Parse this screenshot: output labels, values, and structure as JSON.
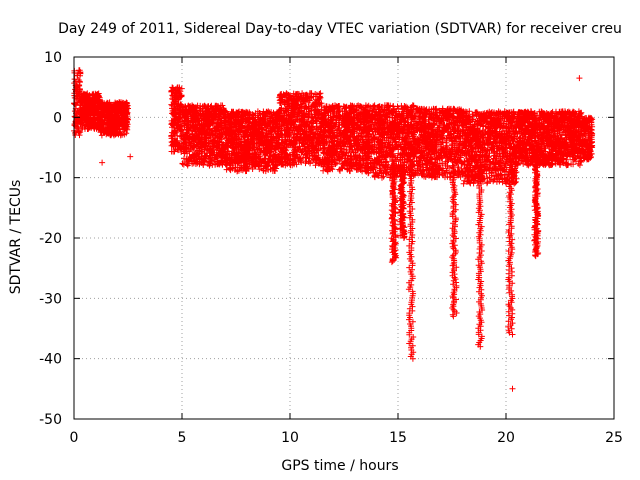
{
  "chart_data": {
    "type": "scatter",
    "title": "Day 249 of 2011, Sidereal Day-to-day VTEC variation (SDTVAR) for receiver creu",
    "xlabel": "GPS time / hours",
    "ylabel": "SDTVAR / TECUs",
    "xlim": [
      0,
      25
    ],
    "ylim": [
      -50,
      10
    ],
    "x_ticks": [
      0,
      5,
      10,
      15,
      20,
      25
    ],
    "y_ticks": [
      10,
      0,
      -10,
      -20,
      -30,
      -40,
      -50
    ],
    "x_tick_labels": [
      "0",
      "5",
      "10",
      "15",
      "20",
      "25"
    ],
    "y_tick_labels": [
      "10",
      "0",
      "-10",
      "-20",
      "-30",
      "-40",
      "-50"
    ],
    "grid": true,
    "marker": "+",
    "series": [
      {
        "name": "SDTVAR",
        "color": "#ff0000",
        "bands": [
          {
            "x": [
              0.0,
              0.3
            ],
            "ymin": -3,
            "ymax": 8
          },
          {
            "x": [
              0.3,
              1.2
            ],
            "ymin": -2,
            "ymax": 4
          },
          {
            "x": [
              1.2,
              2.5
            ],
            "ymin": -3,
            "ymax": 2.5
          },
          {
            "x": [
              4.5,
              5.0
            ],
            "ymin": -6,
            "ymax": 5
          },
          {
            "x": [
              5.0,
              7.0
            ],
            "ymin": -8,
            "ymax": 2
          },
          {
            "x": [
              7.0,
              9.5
            ],
            "ymin": -9,
            "ymax": 1
          },
          {
            "x": [
              9.5,
              11.5
            ],
            "ymin": -8,
            "ymax": 4
          },
          {
            "x": [
              11.5,
              13.5
            ],
            "ymin": -9,
            "ymax": 2
          },
          {
            "x": [
              13.5,
              15.8
            ],
            "ymin": -10,
            "ymax": 2
          },
          {
            "x": [
              15.8,
              18.0
            ],
            "ymin": -10,
            "ymax": 1.5
          },
          {
            "x": [
              18.0,
              20.5
            ],
            "ymin": -11,
            "ymax": 1
          },
          {
            "x": [
              20.5,
              23.5
            ],
            "ymin": -8,
            "ymax": 1
          },
          {
            "x": [
              23.5,
              24.0
            ],
            "ymin": -7,
            "ymax": 0
          }
        ],
        "spikes": [
          {
            "x": 14.8,
            "ymin": -24
          },
          {
            "x": 15.2,
            "ymin": -20
          },
          {
            "x": 15.6,
            "ymin": -40
          },
          {
            "x": 17.6,
            "ymin": -33
          },
          {
            "x": 18.8,
            "ymin": -38
          },
          {
            "x": 20.2,
            "ymin": -36
          },
          {
            "x": 21.4,
            "ymin": -23
          }
        ],
        "outliers": [
          {
            "x": 1.3,
            "y": -7.5
          },
          {
            "x": 2.6,
            "y": -6.5
          },
          {
            "x": 23.4,
            "y": 6.5
          },
          {
            "x": 20.3,
            "y": -45
          }
        ]
      }
    ]
  }
}
